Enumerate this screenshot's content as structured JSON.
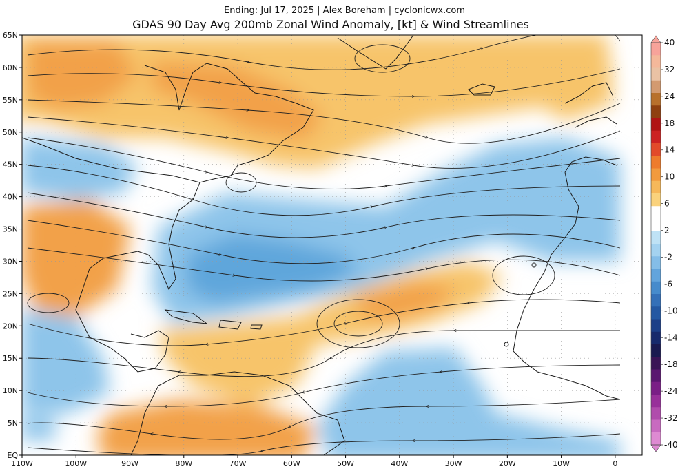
{
  "header": {
    "subtitle": "Ending: Jul 17, 2025 | Alex Boreham | cyclonicwx.com",
    "title": "GDAS 90 Day Avg 200mb Zonal Wind Anomaly, [kt] & Wind Streamlines"
  },
  "map": {
    "lat_labels": [
      "65N",
      "60N",
      "55N",
      "50N",
      "45N",
      "40N",
      "35N",
      "30N",
      "25N",
      "20N",
      "15N",
      "10N",
      "5N",
      "EQ"
    ],
    "lon_labels": [
      "110W",
      "100W",
      "90W",
      "80W",
      "70W",
      "60W",
      "50W",
      "40W",
      "30W",
      "20W",
      "10W",
      "0"
    ],
    "lon_range": [
      -110,
      5
    ],
    "lat_range": [
      0,
      65
    ],
    "colors": {
      "ocean": "#ffffff",
      "coast": "#1a1a1a",
      "streamline": "#222222",
      "positive_light": "#fbe39b",
      "positive_mid": "#f7c46a",
      "positive_strong": "#f2a14a",
      "positive_dark": "#ec8a3c",
      "negative_light": "#bfe2f5",
      "negative_mid": "#8ec5ea",
      "negative_strong": "#5ea6db",
      "negative_dark": "#3f86c6"
    }
  },
  "colorbar": {
    "labels": [
      "40",
      "32",
      "24",
      "18",
      "14",
      "10",
      "6",
      "2",
      "-2",
      "-6",
      "-10",
      "-14",
      "-18",
      "-24",
      "-32",
      "-40"
    ],
    "colors": [
      "#f7a39a",
      "#f4b89a",
      "#eac2a4",
      "#d39a70",
      "#b8702c",
      "#8f4010",
      "#b01414",
      "#cc2222",
      "#e24a2a",
      "#ee7b2c",
      "#f29a3e",
      "#f6b85a",
      "#fad27c",
      "#ffffff",
      "#ffffff",
      "#bfe2f5",
      "#a4d2f0",
      "#84bde8",
      "#62a4dc",
      "#468bcc",
      "#3470b8",
      "#2458a2",
      "#1c3f88",
      "#172a6c",
      "#1a1a50",
      "#3a1456",
      "#5a1670",
      "#7a1e86",
      "#98309a",
      "#b04cac",
      "#c86ac0",
      "#de8ad2"
    ]
  }
}
